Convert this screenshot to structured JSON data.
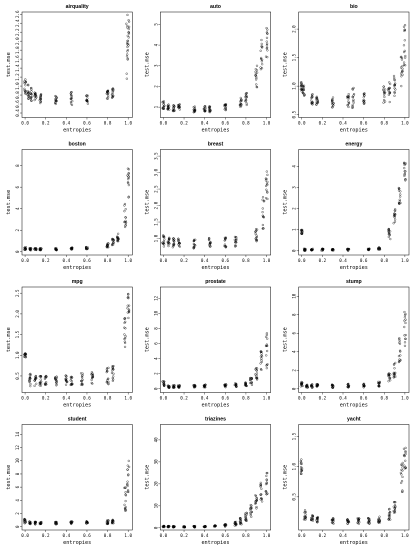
{
  "x_label": "entropies",
  "y_label": "test.mse",
  "chart_data": [
    {
      "type": "scatter",
      "title": "airquality",
      "xlabel": "entropies",
      "ylabel": "test.mse",
      "xticks": [
        "0.0",
        "0.2",
        "0.4",
        "0.6",
        "0.8",
        "1.0"
      ],
      "yticks": [
        "0.2",
        "0.4",
        "0.6",
        "0.8",
        "1.0",
        "1.2",
        "1.4",
        "1.6",
        "1.8",
        "2.0",
        "2.2",
        "2.4",
        "2.6"
      ],
      "xlim": [
        -0.03,
        1.04
      ],
      "ylim": [
        0.3,
        2.65
      ],
      "series": [
        {
          "clusters": [
            [
              0.0,
              0.95,
              0.2
            ],
            [
              0.03,
              0.88,
              0.2
            ],
            [
              0.06,
              0.82,
              0.15
            ],
            [
              0.1,
              0.75,
              0.12
            ],
            [
              0.15,
              0.72,
              0.1
            ],
            [
              0.3,
              0.7,
              0.1
            ],
            [
              0.45,
              0.72,
              0.15
            ],
            [
              0.6,
              0.7,
              0.1
            ],
            [
              0.8,
              0.8,
              0.1
            ],
            [
              0.85,
              0.85,
              0.12
            ],
            [
              0.99,
              1.7,
              0.7
            ],
            [
              1.0,
              2.2,
              0.4
            ]
          ]
        }
      ]
    },
    {
      "type": "scatter",
      "title": "auto",
      "xlabel": "entropies",
      "ylabel": "test.mse",
      "xticks": [
        "0.0",
        "0.2",
        "0.4",
        "0.6",
        "0.8",
        "1.0"
      ],
      "yticks": [
        "1",
        "2",
        "3",
        "4",
        "5"
      ],
      "xlim": [
        -0.03,
        1.04
      ],
      "ylim": [
        0.5,
        5.6
      ],
      "series": [
        {
          "clusters": [
            [
              0.0,
              1.1,
              0.2
            ],
            [
              0.05,
              1.0,
              0.15
            ],
            [
              0.1,
              0.95,
              0.15
            ],
            [
              0.15,
              1.0,
              0.15
            ],
            [
              0.3,
              0.9,
              0.15
            ],
            [
              0.4,
              0.95,
              0.15
            ],
            [
              0.45,
              0.9,
              0.15
            ],
            [
              0.6,
              1.0,
              0.15
            ],
            [
              0.75,
              1.2,
              0.25
            ],
            [
              0.8,
              1.4,
              0.3
            ],
            [
              0.9,
              2.5,
              0.6
            ],
            [
              0.95,
              3.5,
              0.8
            ],
            [
              1.0,
              4.2,
              0.8
            ]
          ]
        }
      ]
    },
    {
      "type": "scatter",
      "title": "bio",
      "xlabel": "entropies",
      "ylabel": "test.mse",
      "xticks": [
        "0.0",
        "0.2",
        "0.4",
        "0.6",
        "0.8",
        "1.0"
      ],
      "yticks": [
        "0.5",
        "1.0",
        "1.5",
        "2.0"
      ],
      "xlim": [
        -0.03,
        1.04
      ],
      "ylim": [
        0.45,
        2.3
      ],
      "series": [
        {
          "clusters": [
            [
              0.0,
              1.0,
              0.1
            ],
            [
              0.02,
              0.92,
              0.1
            ],
            [
              0.1,
              0.78,
              0.1
            ],
            [
              0.15,
              0.75,
              0.08
            ],
            [
              0.3,
              0.72,
              0.1
            ],
            [
              0.45,
              0.75,
              0.12
            ],
            [
              0.5,
              0.8,
              0.2
            ],
            [
              0.6,
              0.78,
              0.1
            ],
            [
              0.8,
              0.85,
              0.15
            ],
            [
              0.85,
              0.9,
              0.2
            ],
            [
              0.9,
              1.0,
              0.2
            ],
            [
              0.97,
              1.3,
              0.3
            ],
            [
              1.0,
              1.7,
              0.4
            ]
          ]
        }
      ]
    },
    {
      "type": "scatter",
      "title": "boston",
      "xlabel": "entropies",
      "ylabel": "test.mse",
      "xticks": [
        "0.0",
        "0.2",
        "0.4",
        "0.6",
        "0.8",
        "1.0"
      ],
      "yticks": [
        "0",
        "2",
        "4",
        "6",
        "8"
      ],
      "xlim": [
        -0.03,
        1.04
      ],
      "ylim": [
        -0.3,
        9.5
      ],
      "series": [
        {
          "clusters": [
            [
              0.0,
              0.3,
              0.15
            ],
            [
              0.05,
              0.25,
              0.12
            ],
            [
              0.1,
              0.25,
              0.1
            ],
            [
              0.15,
              0.25,
              0.1
            ],
            [
              0.3,
              0.25,
              0.1
            ],
            [
              0.45,
              0.3,
              0.1
            ],
            [
              0.6,
              0.35,
              0.1
            ],
            [
              0.8,
              0.6,
              0.2
            ],
            [
              0.85,
              0.9,
              0.3
            ],
            [
              0.9,
              1.3,
              0.4
            ],
            [
              0.97,
              3.5,
              1.2
            ],
            [
              1.0,
              6.5,
              1.5
            ]
          ]
        }
      ]
    },
    {
      "type": "scatter",
      "title": "breast",
      "xlabel": "entropies",
      "ylabel": "test.mse",
      "xticks": [
        "0.0",
        "0.2",
        "0.4",
        "0.6",
        "0.8",
        "1.0"
      ],
      "yticks": [
        "1.0",
        "1.5",
        "2.0",
        "2.5",
        "3.0",
        "3.5"
      ],
      "xlim": [
        -0.03,
        1.04
      ],
      "ylim": [
        0.5,
        3.7
      ],
      "series": [
        {
          "clusters": [
            [
              0.0,
              0.95,
              0.2
            ],
            [
              0.05,
              0.9,
              0.15
            ],
            [
              0.1,
              0.88,
              0.15
            ],
            [
              0.15,
              0.9,
              0.15
            ],
            [
              0.3,
              0.85,
              0.15
            ],
            [
              0.45,
              0.9,
              0.15
            ],
            [
              0.6,
              0.88,
              0.15
            ],
            [
              0.7,
              0.9,
              0.15
            ],
            [
              0.9,
              1.1,
              0.2
            ],
            [
              0.97,
              1.8,
              0.5
            ],
            [
              1.0,
              2.6,
              0.5
            ]
          ]
        }
      ]
    },
    {
      "type": "scatter",
      "title": "energy",
      "xlabel": "entropies",
      "ylabel": "test.mse",
      "xticks": [
        "0.0",
        "0.2",
        "0.4",
        "0.6",
        "0.8",
        "1.0"
      ],
      "yticks": [
        "0",
        "1",
        "2",
        "3",
        "4"
      ],
      "xlim": [
        -0.03,
        1.04
      ],
      "ylim": [
        -0.2,
        4.8
      ],
      "series": [
        {
          "clusters": [
            [
              0.0,
              0.9,
              0.1
            ],
            [
              0.03,
              0.05,
              0.05
            ],
            [
              0.1,
              0.05,
              0.05
            ],
            [
              0.2,
              0.05,
              0.05
            ],
            [
              0.3,
              0.05,
              0.05
            ],
            [
              0.45,
              0.05,
              0.05
            ],
            [
              0.65,
              0.08,
              0.05
            ],
            [
              0.75,
              0.1,
              0.06
            ],
            [
              0.85,
              0.8,
              0.3
            ],
            [
              0.9,
              1.6,
              0.4
            ],
            [
              0.95,
              2.8,
              0.7
            ],
            [
              1.0,
              3.8,
              0.5
            ]
          ]
        }
      ]
    },
    {
      "type": "scatter",
      "title": "mpg",
      "xlabel": "entropies",
      "ylabel": "test.mse",
      "xticks": [
        "0.0",
        "0.2",
        "0.4",
        "0.6",
        "0.8",
        "1.0"
      ],
      "yticks": [
        "0.5",
        "1.0",
        "1.5",
        "2.0",
        "2.5"
      ],
      "xlim": [
        -0.03,
        1.04
      ],
      "ylim": [
        0.1,
        2.65
      ],
      "series": [
        {
          "clusters": [
            [
              0.0,
              1.0,
              0.05
            ],
            [
              0.05,
              0.4,
              0.15
            ],
            [
              0.1,
              0.38,
              0.12
            ],
            [
              0.15,
              0.38,
              0.12
            ],
            [
              0.2,
              0.38,
              0.12
            ],
            [
              0.3,
              0.38,
              0.12
            ],
            [
              0.4,
              0.4,
              0.12
            ],
            [
              0.45,
              0.4,
              0.12
            ],
            [
              0.55,
              0.42,
              0.15
            ],
            [
              0.65,
              0.45,
              0.15
            ],
            [
              0.8,
              0.5,
              0.2
            ],
            [
              0.85,
              0.55,
              0.2
            ],
            [
              0.97,
              1.5,
              0.4
            ],
            [
              1.0,
              2.2,
              0.3
            ]
          ]
        }
      ]
    },
    {
      "type": "scatter",
      "title": "prostate",
      "xlabel": "entropies",
      "ylabel": "test.mse",
      "xticks": [
        "0.0",
        "0.2",
        "0.4",
        "0.6",
        "0.8",
        "1.0"
      ],
      "yticks": [
        "0",
        "2",
        "4",
        "6",
        "8",
        "10",
        "12"
      ],
      "xlim": [
        -0.03,
        1.04
      ],
      "ylim": [
        -0.5,
        13.5
      ],
      "series": [
        {
          "clusters": [
            [
              0.0,
              0.6,
              0.5
            ],
            [
              0.05,
              0.3,
              0.2
            ],
            [
              0.1,
              0.3,
              0.2
            ],
            [
              0.15,
              0.3,
              0.2
            ],
            [
              0.3,
              0.3,
              0.2
            ],
            [
              0.4,
              0.35,
              0.2
            ],
            [
              0.6,
              0.4,
              0.2
            ],
            [
              0.7,
              0.5,
              0.25
            ],
            [
              0.8,
              0.6,
              0.3
            ],
            [
              0.85,
              1.0,
              0.5
            ],
            [
              0.9,
              2.0,
              0.8
            ],
            [
              0.95,
              3.5,
              1.5
            ],
            [
              1.0,
              5.0,
              2.5
            ]
          ]
        }
      ]
    },
    {
      "type": "scatter",
      "title": "stump",
      "xlabel": "entropies",
      "ylabel": "test.mse",
      "xticks": [
        "0.0",
        "0.2",
        "0.4",
        "0.6",
        "0.8",
        "1.0"
      ],
      "yticks": [
        "0",
        "2",
        "4",
        "6",
        "8",
        "10"
      ],
      "xlim": [
        -0.03,
        1.04
      ],
      "ylim": [
        -0.4,
        11.0
      ],
      "series": [
        {
          "clusters": [
            [
              0.0,
              0.5,
              0.3
            ],
            [
              0.05,
              0.35,
              0.2
            ],
            [
              0.1,
              0.3,
              0.2
            ],
            [
              0.15,
              0.3,
              0.2
            ],
            [
              0.3,
              0.3,
              0.2
            ],
            [
              0.45,
              0.35,
              0.2
            ],
            [
              0.6,
              0.35,
              0.2
            ],
            [
              0.75,
              0.5,
              0.3
            ],
            [
              0.85,
              1.2,
              0.5
            ],
            [
              0.9,
              2.0,
              0.8
            ],
            [
              0.95,
              4.0,
              1.5
            ],
            [
              1.0,
              6.5,
              2.0
            ]
          ]
        }
      ]
    },
    {
      "type": "scatter",
      "title": "student",
      "xlabel": "entropies",
      "ylabel": "test.mse",
      "xticks": [
        "0.0",
        "0.2",
        "0.4",
        "0.6",
        "0.8",
        "1.0"
      ],
      "yticks": [
        "0",
        "2",
        "4",
        "6",
        "8",
        "10",
        "12",
        "14"
      ],
      "xlim": [
        -0.03,
        1.04
      ],
      "ylim": [
        -0.5,
        15.5
      ],
      "series": [
        {
          "clusters": [
            [
              0.0,
              0.8,
              0.4
            ],
            [
              0.05,
              0.6,
              0.2
            ],
            [
              0.1,
              0.55,
              0.2
            ],
            [
              0.15,
              0.55,
              0.2
            ],
            [
              0.3,
              0.55,
              0.2
            ],
            [
              0.45,
              0.6,
              0.2
            ],
            [
              0.6,
              0.65,
              0.2
            ],
            [
              0.8,
              0.7,
              0.3
            ],
            [
              0.85,
              0.75,
              0.3
            ],
            [
              0.97,
              4.0,
              2.0
            ],
            [
              1.0,
              7.5,
              2.5
            ]
          ]
        }
      ]
    },
    {
      "type": "scatter",
      "title": "triazines",
      "xlabel": "entropies",
      "ylabel": "test.mse",
      "xticks": [
        "0.0",
        "0.2",
        "0.4",
        "0.6",
        "0.8",
        "1.0"
      ],
      "yticks": [
        "0",
        "10",
        "20",
        "30",
        "40"
      ],
      "xlim": [
        -0.03,
        1.04
      ],
      "ylim": [
        -1.0,
        47.0
      ],
      "series": [
        {
          "clusters": [
            [
              0.0,
              0.6,
              0.3
            ],
            [
              0.05,
              0.5,
              0.3
            ],
            [
              0.1,
              0.5,
              0.3
            ],
            [
              0.2,
              0.5,
              0.3
            ],
            [
              0.3,
              0.5,
              0.3
            ],
            [
              0.4,
              0.6,
              0.3
            ],
            [
              0.5,
              0.8,
              0.4
            ],
            [
              0.6,
              1.0,
              0.6
            ],
            [
              0.7,
              1.8,
              1.0
            ],
            [
              0.75,
              3.0,
              1.5
            ],
            [
              0.8,
              5.0,
              2.0
            ],
            [
              0.85,
              8.0,
              3.0
            ],
            [
              0.9,
              12.0,
              4.0
            ],
            [
              0.95,
              16.0,
              5.0
            ],
            [
              1.0,
              20.0,
              6.0
            ]
          ]
        }
      ]
    },
    {
      "type": "scatter",
      "title": "yacht",
      "xlabel": "entropies",
      "ylabel": "test.mse",
      "xticks": [
        "0.0",
        "0.2",
        "0.4",
        "0.6",
        "0.8",
        "1.0"
      ],
      "yticks": [
        "0.5",
        "1.0",
        "1.5"
      ],
      "xlim": [
        -0.03,
        1.04
      ],
      "ylim": [
        -0.05,
        1.7
      ],
      "series": [
        {
          "clusters": [
            [
              0.0,
              1.0,
              0.12
            ],
            [
              0.03,
              0.2,
              0.08
            ],
            [
              0.1,
              0.15,
              0.05
            ],
            [
              0.15,
              0.12,
              0.05
            ],
            [
              0.3,
              0.1,
              0.05
            ],
            [
              0.45,
              0.1,
              0.05
            ],
            [
              0.55,
              0.1,
              0.05
            ],
            [
              0.65,
              0.1,
              0.05
            ],
            [
              0.75,
              0.12,
              0.05
            ],
            [
              0.85,
              0.2,
              0.1
            ],
            [
              0.9,
              0.35,
              0.15
            ],
            [
              0.97,
              0.8,
              0.3
            ],
            [
              1.0,
              1.2,
              0.25
            ]
          ]
        }
      ]
    }
  ]
}
